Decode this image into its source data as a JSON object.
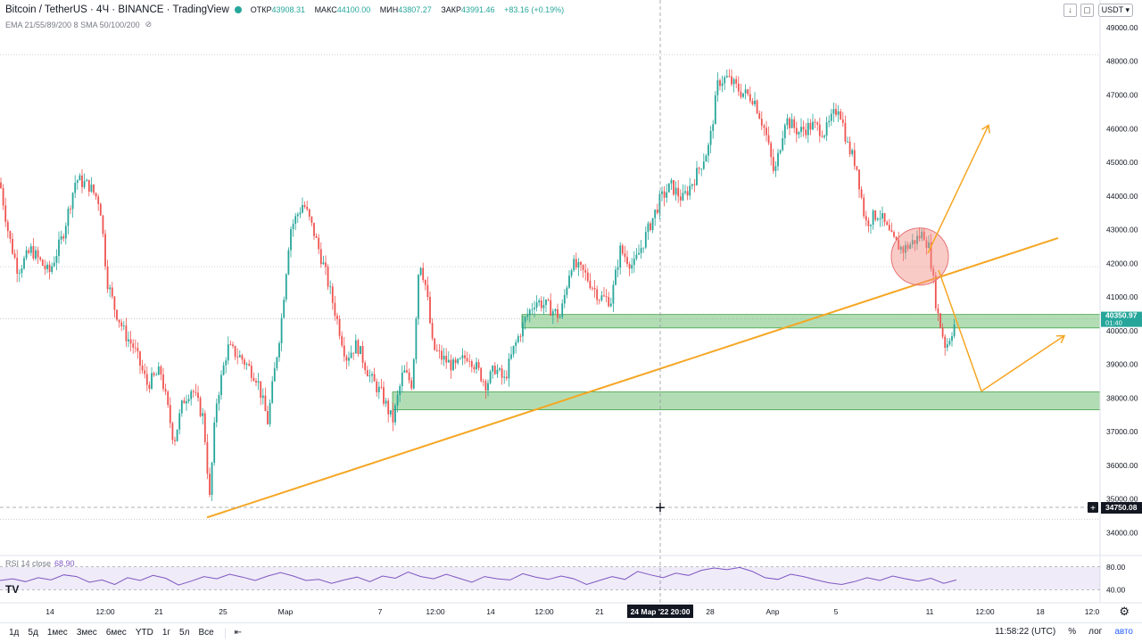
{
  "header": {
    "symbol": "Bitcoin / TetherUS · 4Ч · BINANCE · TradingView",
    "ohlc": [
      {
        "k": "ОТКР",
        "v": "43908.31"
      },
      {
        "k": "МАКС",
        "v": "44100.00"
      },
      {
        "k": "МИН",
        "v": "43807.27"
      },
      {
        "k": "ЗАКР",
        "v": "43991.46"
      }
    ],
    "change": "+83.16 (+0.19%)",
    "indicators": "EMA 21/55/89/200 8 SMA 50/100/200",
    "currency": "USDT"
  },
  "rsi": {
    "label": "RSI 14 close",
    "value": "68.90",
    "levels": [
      "80.00",
      "40.00"
    ]
  },
  "price_labels": {
    "current": "40350.97",
    "countdown": "01:40",
    "crosshair": "34750.08"
  },
  "time_label": "24 Мар '22   20:00",
  "timeframes": [
    "1д",
    "5д",
    "1мес",
    "3мес",
    "6мес",
    "YTD",
    "1г",
    "5л",
    "Все"
  ],
  "footer": {
    "clock": "11:58:22 (UTC)",
    "percent": "%",
    "log": "лог",
    "auto": "авто"
  },
  "logo": "TV",
  "colors": {
    "up": "#26a69a",
    "down": "#ef5350",
    "trend": "#f5a623",
    "zone": "#66bb6a",
    "rsi": "#7e57c2",
    "circle": "#f28b82"
  },
  "chart_data": {
    "type": "candlestick",
    "y_ticks": [
      34000,
      35000,
      36000,
      37000,
      38000,
      39000,
      40000,
      41000,
      42000,
      43000,
      44000,
      45000,
      46000,
      47000,
      48000,
      49000
    ],
    "ylim": [
      33400,
      49450
    ],
    "x_tick_labels": [
      "14",
      "12:00",
      "21",
      "25",
      "Мар",
      "7",
      "12:00",
      "14",
      "12:00",
      "21",
      "28",
      "Апр",
      "5",
      "11",
      "12:00",
      "18",
      "12:0"
    ],
    "close_path": [
      [
        0,
        44400
      ],
      [
        10,
        42800
      ],
      [
        20,
        41800
      ],
      [
        35,
        42400
      ],
      [
        55,
        41700
      ],
      [
        70,
        42800
      ],
      [
        85,
        44500
      ],
      [
        100,
        44300
      ],
      [
        112,
        43800
      ],
      [
        120,
        41500
      ],
      [
        128,
        40700
      ],
      [
        140,
        39900
      ],
      [
        150,
        39500
      ],
      [
        165,
        38400
      ],
      [
        180,
        38800
      ],
      [
        195,
        36700
      ],
      [
        205,
        37900
      ],
      [
        215,
        38300
      ],
      [
        228,
        37400
      ],
      [
        235,
        35000
      ],
      [
        242,
        37800
      ],
      [
        255,
        39500
      ],
      [
        270,
        39200
      ],
      [
        288,
        38600
      ],
      [
        300,
        37300
      ],
      [
        315,
        40200
      ],
      [
        325,
        43000
      ],
      [
        340,
        43800
      ],
      [
        352,
        42900
      ],
      [
        365,
        41700
      ],
      [
        378,
        40300
      ],
      [
        388,
        39200
      ],
      [
        400,
        39600
      ],
      [
        415,
        38600
      ],
      [
        428,
        38100
      ],
      [
        440,
        37300
      ],
      [
        452,
        38800
      ],
      [
        462,
        38400
      ],
      [
        470,
        42200
      ],
      [
        478,
        41200
      ],
      [
        485,
        39500
      ],
      [
        495,
        39200
      ],
      [
        510,
        38900
      ],
      [
        525,
        39300
      ],
      [
        545,
        38400
      ],
      [
        555,
        38900
      ],
      [
        565,
        38500
      ],
      [
        575,
        39400
      ],
      [
        588,
        40300
      ],
      [
        600,
        40900
      ],
      [
        615,
        40700
      ],
      [
        628,
        40400
      ],
      [
        640,
        42000
      ],
      [
        655,
        41700
      ],
      [
        672,
        41000
      ],
      [
        685,
        40900
      ],
      [
        695,
        42400
      ],
      [
        710,
        41900
      ],
      [
        725,
        42900
      ],
      [
        740,
        43900
      ],
      [
        752,
        44300
      ],
      [
        765,
        43900
      ],
      [
        780,
        44600
      ],
      [
        795,
        45500
      ],
      [
        805,
        47400
      ],
      [
        815,
        47500
      ],
      [
        830,
        47100
      ],
      [
        845,
        46900
      ],
      [
        858,
        45900
      ],
      [
        868,
        44600
      ],
      [
        880,
        46300
      ],
      [
        895,
        45900
      ],
      [
        910,
        46100
      ],
      [
        925,
        45900
      ],
      [
        940,
        46700
      ],
      [
        950,
        45500
      ],
      [
        960,
        44900
      ],
      [
        970,
        43200
      ],
      [
        985,
        43500
      ],
      [
        1000,
        42700
      ],
      [
        1012,
        42400
      ],
      [
        1022,
        42600
      ],
      [
        1035,
        42900
      ],
      [
        1042,
        42400
      ],
      [
        1050,
        40600
      ],
      [
        1060,
        39500
      ],
      [
        1072,
        40350
      ]
    ],
    "support_zones": [
      {
        "x_start": 585,
        "from": 40080,
        "to": 40480
      },
      {
        "x_start": 440,
        "from": 37650,
        "to": 38180
      }
    ],
    "trendline": {
      "x1": 232,
      "y1": 34450,
      "x2": 1186,
      "y2": 42750
    },
    "projections": [
      {
        "from": [
          1040,
          42300
        ],
        "to": [
          1108,
          46100
        ]
      },
      {
        "from": [
          1052,
          41800
        ],
        "to": [
          1100,
          38200
        ]
      },
      {
        "from": [
          1100,
          38200
        ],
        "to": [
          1193,
          39850
        ]
      }
    ],
    "highlight_circle": {
      "cx": 1031,
      "cy": 42200,
      "r": 32
    },
    "rsi_range": [
      20,
      100
    ],
    "rsi_values": [
      56,
      59,
      54,
      61,
      57,
      66,
      63,
      53,
      57,
      49,
      61,
      56,
      65,
      60,
      48,
      55,
      63,
      59,
      67,
      62,
      56,
      64,
      70,
      64,
      56,
      58,
      51,
      57,
      62,
      54,
      64,
      60,
      71,
      63,
      59,
      67,
      60,
      53,
      63,
      59,
      57,
      68,
      62,
      58,
      64,
      59,
      49,
      56,
      63,
      58,
      72,
      66,
      61,
      69,
      65,
      74,
      78,
      75,
      79,
      72,
      61,
      58,
      67,
      63,
      57,
      52,
      49,
      54,
      61,
      56,
      64,
      59,
      55,
      60,
      51,
      57
    ]
  }
}
